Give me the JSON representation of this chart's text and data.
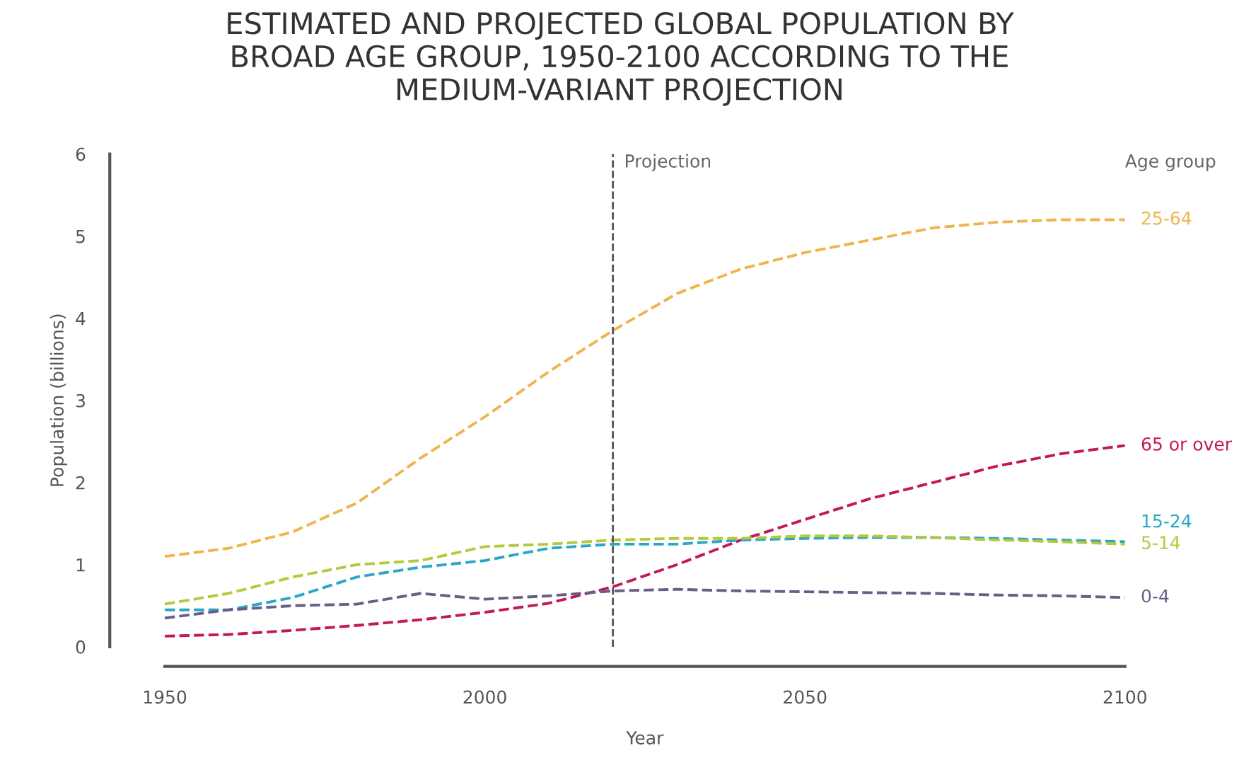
{
  "chart_data": {
    "type": "line",
    "title": "ESTIMATED AND PROJECTED GLOBAL POPULATION BY\nBROAD AGE GROUP, 1950-2100 ACCORDING TO THE\nMEDIUM-VARIANT PROJECTION",
    "xlabel": "Year",
    "ylabel": "Population (billions)",
    "legend_title": "Age group",
    "line_style": "dashed",
    "grid": false,
    "x": [
      1950,
      1960,
      1970,
      1980,
      1990,
      2000,
      2010,
      2020,
      2030,
      2040,
      2050,
      2060,
      2070,
      2080,
      2090,
      2100
    ],
    "xlim": [
      1950,
      2100
    ],
    "xticks": [
      1950,
      2000,
      2050,
      2100
    ],
    "ylim": [
      0,
      6
    ],
    "yticks": [
      0,
      1,
      2,
      3,
      4,
      5,
      6
    ],
    "ref_lines": [
      {
        "axis": "x",
        "value": 2020,
        "label": "Projection",
        "color": "#555555",
        "line_style": "dashed"
      }
    ],
    "series": [
      {
        "name": "25-64",
        "color": "#f0b44c",
        "values": [
          1.1,
          1.2,
          1.4,
          1.75,
          2.3,
          2.8,
          3.35,
          3.85,
          4.3,
          4.6,
          4.8,
          4.95,
          5.1,
          5.17,
          5.2,
          5.2
        ]
      },
      {
        "name": "65 or over",
        "color": "#c2185b",
        "values": [
          0.13,
          0.15,
          0.2,
          0.26,
          0.33,
          0.42,
          0.53,
          0.73,
          1.0,
          1.3,
          1.55,
          1.8,
          2.0,
          2.2,
          2.35,
          2.45
        ]
      },
      {
        "name": "15-24",
        "color": "#2aa7c8",
        "values": [
          0.45,
          0.45,
          0.6,
          0.85,
          0.97,
          1.05,
          1.2,
          1.25,
          1.25,
          1.3,
          1.32,
          1.33,
          1.33,
          1.32,
          1.3,
          1.28
        ]
      },
      {
        "name": "5-14",
        "color": "#b5c93a",
        "values": [
          0.52,
          0.65,
          0.85,
          1.0,
          1.05,
          1.22,
          1.25,
          1.3,
          1.32,
          1.32,
          1.35,
          1.35,
          1.33,
          1.3,
          1.28,
          1.25
        ]
      },
      {
        "name": "0-4",
        "color": "#6a5d8a",
        "values": [
          0.35,
          0.45,
          0.5,
          0.52,
          0.65,
          0.58,
          0.62,
          0.68,
          0.7,
          0.68,
          0.67,
          0.66,
          0.65,
          0.63,
          0.62,
          0.6
        ]
      }
    ]
  }
}
